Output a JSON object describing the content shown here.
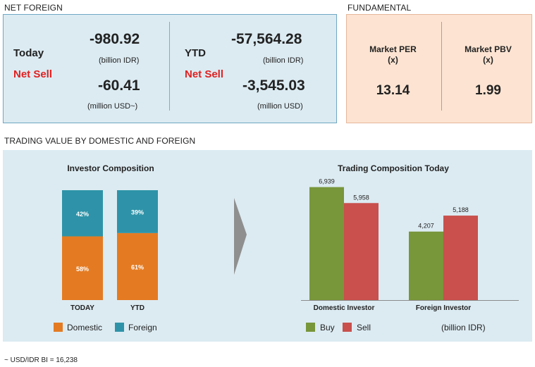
{
  "net_foreign": {
    "title": "NET FOREIGN",
    "today": {
      "label": "Today",
      "status": "Net Sell",
      "idr_value": "-980.92",
      "idr_unit": "(billion IDR)",
      "usd_value": "-60.41",
      "usd_unit": "(million USD~)"
    },
    "ytd": {
      "label": "YTD",
      "status": "Net Sell",
      "idr_value": "-57,564.28",
      "idr_unit": "(billion IDR)",
      "usd_value": "-3,545.03",
      "usd_unit": "(million USD)"
    }
  },
  "fundamental": {
    "title": "FUNDAMENTAL",
    "per": {
      "label": "Market PER",
      "unit": "(x)",
      "value": "13.14"
    },
    "pbv": {
      "label": "Market PBV",
      "unit": "(x)",
      "value": "1.99"
    }
  },
  "trading": {
    "title": "TRADING VALUE BY DOMESTIC AND FOREIGN",
    "unit_note": "(billion IDR)",
    "footnote": "~ USD/IDR BI = 16,238"
  },
  "colors": {
    "domestic": "#e47b22",
    "foreign": "#2e93a8",
    "buy": "#78963a",
    "sell": "#c9504d",
    "net_sell": "#e02020"
  },
  "chart_data": [
    {
      "type": "bar",
      "stacked": true,
      "percent": true,
      "title": "Investor Composition",
      "categories": [
        "TODAY",
        "YTD"
      ],
      "series": [
        {
          "name": "Domestic",
          "values": [
            58,
            61
          ],
          "labels": [
            "58%",
            "61%"
          ]
        },
        {
          "name": "Foreign",
          "values": [
            42,
            39
          ],
          "labels": [
            "42%",
            "39%"
          ]
        }
      ],
      "ylim": [
        0,
        100
      ],
      "legend": "bottom"
    },
    {
      "type": "bar",
      "title": "Trading Composition Today",
      "categories": [
        "Domestic Investor",
        "Foreign Investor"
      ],
      "series": [
        {
          "name": "Buy",
          "values": [
            6939,
            4207
          ],
          "labels": [
            "6,939",
            "4,207"
          ]
        },
        {
          "name": "Sell",
          "values": [
            5958,
            5188
          ],
          "labels": [
            "5,958",
            "5,188"
          ]
        }
      ],
      "ylim": [
        0,
        7700
      ],
      "grid": false,
      "legend": "bottom-left"
    }
  ]
}
